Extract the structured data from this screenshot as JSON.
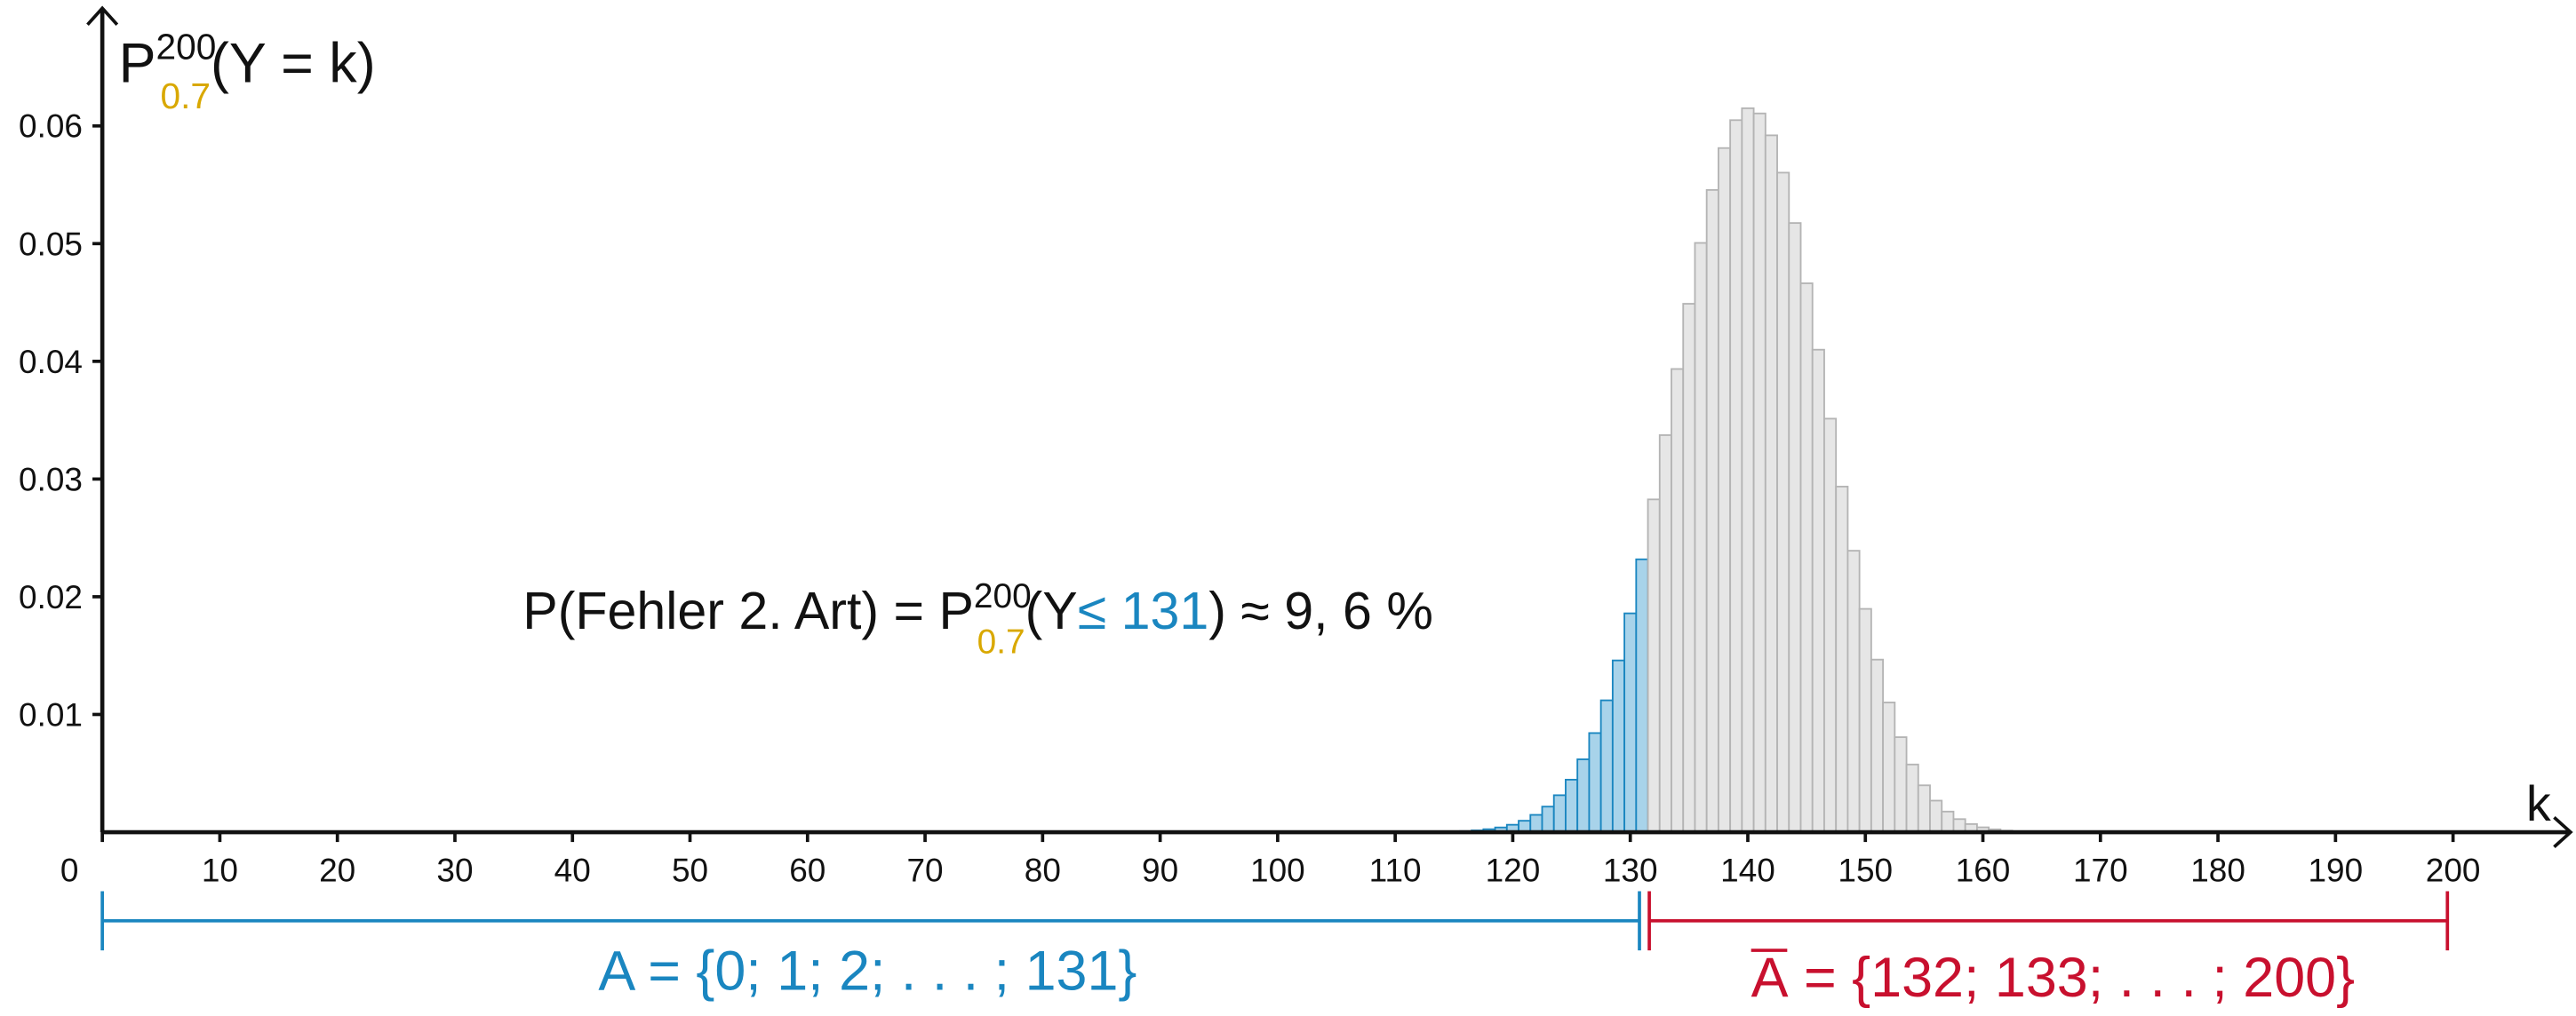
{
  "chart_data": {
    "type": "bar",
    "y_label": {
      "base": "P",
      "sup": "200",
      "sub": "0.7",
      "rest": "(Y = k)"
    },
    "x_label": "k",
    "annotation": {
      "prefix": "P(Fehler 2. Art) = P",
      "sup": "200",
      "sub": "0.7",
      "open": "(Y",
      "bound": "≤ 131",
      "rest": ") ≈ 9, 6 %"
    },
    "acceptance": "A = {0; 1; 2; . . . ; 131}",
    "rejection": {
      "symbol": "A",
      "set": " = {132; 133; . . . ; 200}"
    },
    "series": [
      {
        "color": "#1a86c0",
        "fill": "#a8d3ea",
        "x": [
          102,
          103,
          104,
          105,
          106,
          107,
          108,
          109,
          110,
          111,
          112,
          113,
          114,
          115,
          116,
          117,
          118,
          119,
          120,
          121,
          122,
          123,
          124,
          125,
          126,
          127,
          128,
          129,
          130,
          131
        ],
        "values": [
          0,
          0,
          0,
          0,
          0,
          0,
          0,
          0,
          0,
          0,
          1e-05,
          2e-05,
          3e-05,
          5e-05,
          9e-05,
          0.00015,
          0.00025,
          0.0004,
          0.00063,
          0.00097,
          0.00147,
          0.00217,
          0.00314,
          0.00446,
          0.00619,
          0.00842,
          0.0112,
          0.01459,
          0.01859,
          0.02318
        ]
      },
      {
        "color": "#b4b4b4",
        "fill": "#e6e6e6",
        "x": [
          132,
          133,
          134,
          135,
          136,
          137,
          138,
          139,
          140,
          141,
          142,
          143,
          144,
          145,
          146,
          147,
          148,
          149,
          150,
          151,
          152,
          153,
          154,
          155,
          156,
          157,
          158,
          159,
          160,
          161,
          162,
          163,
          164,
          165,
          166,
          167,
          168,
          169,
          170,
          171,
          172,
          173
        ],
        "values": [
          0.02827,
          0.03373,
          0.03935,
          0.04489,
          0.05006,
          0.05456,
          0.05812,
          0.06049,
          0.0615,
          0.06106,
          0.0592,
          0.05603,
          0.05175,
          0.04663,
          0.04099,
          0.03513,
          0.02936,
          0.02391,
          0.01897,
          0.01466,
          0.01102,
          0.00807,
          0.00575,
          0.00398,
          0.00268,
          0.00175,
          0.00111,
          0.00069,
          0.00041,
          0.00024,
          0.00013,
          7e-05,
          4e-05,
          2e-05,
          1e-05,
          0,
          0,
          0,
          0,
          0,
          0,
          0
        ]
      }
    ],
    "xlim": [
      0,
      210
    ],
    "ylim": [
      0,
      0.07
    ],
    "xticks": [
      0,
      10,
      20,
      30,
      40,
      50,
      60,
      70,
      80,
      90,
      100,
      110,
      120,
      130,
      140,
      150,
      160,
      170,
      180,
      190,
      200
    ],
    "yticks": [
      0.01,
      0.02,
      0.03,
      0.04,
      0.05,
      0.06
    ]
  }
}
